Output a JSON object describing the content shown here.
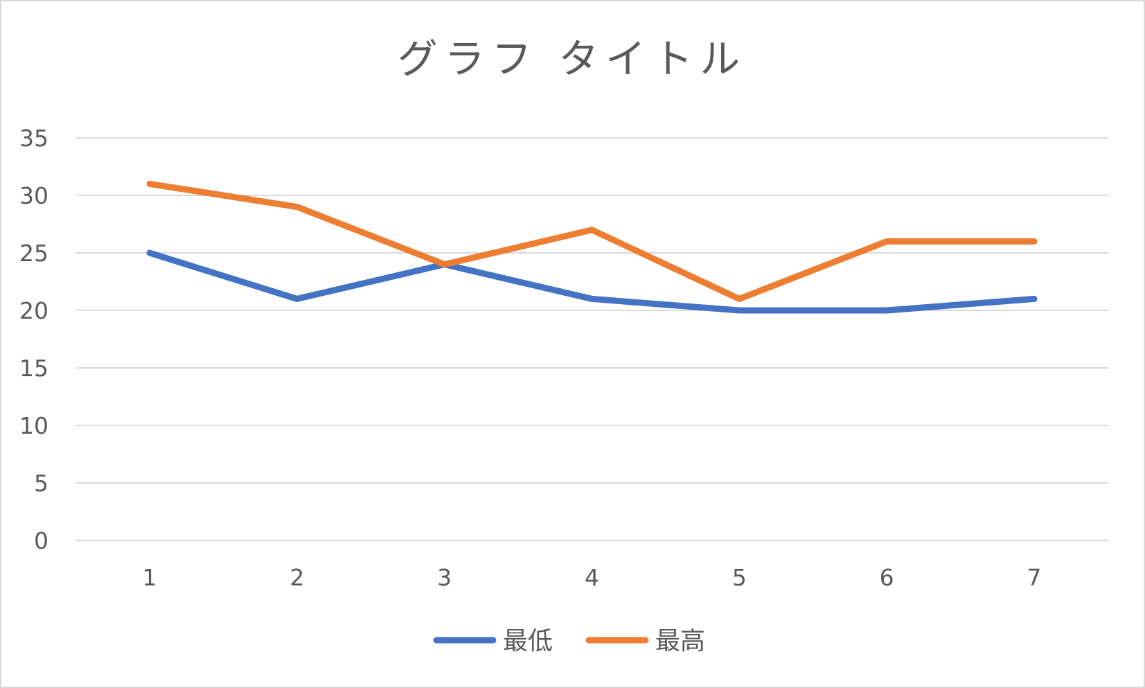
{
  "chart_data": {
    "type": "line",
    "title": "グラフ タイトル",
    "categories": [
      "1",
      "2",
      "3",
      "4",
      "5",
      "6",
      "7"
    ],
    "series": [
      {
        "name": "最低",
        "color": "#4472c4",
        "values": [
          25,
          21,
          24,
          21,
          20,
          20,
          21
        ]
      },
      {
        "name": "最高",
        "color": "#ed7d31",
        "values": [
          31,
          29,
          24,
          27,
          21,
          26,
          26
        ]
      }
    ],
    "ylim": [
      0,
      35
    ],
    "yticks": [
      0,
      5,
      10,
      15,
      20,
      25,
      30,
      35
    ],
    "xlabel": "",
    "ylabel": "",
    "grid": true,
    "legend_position": "bottom"
  }
}
